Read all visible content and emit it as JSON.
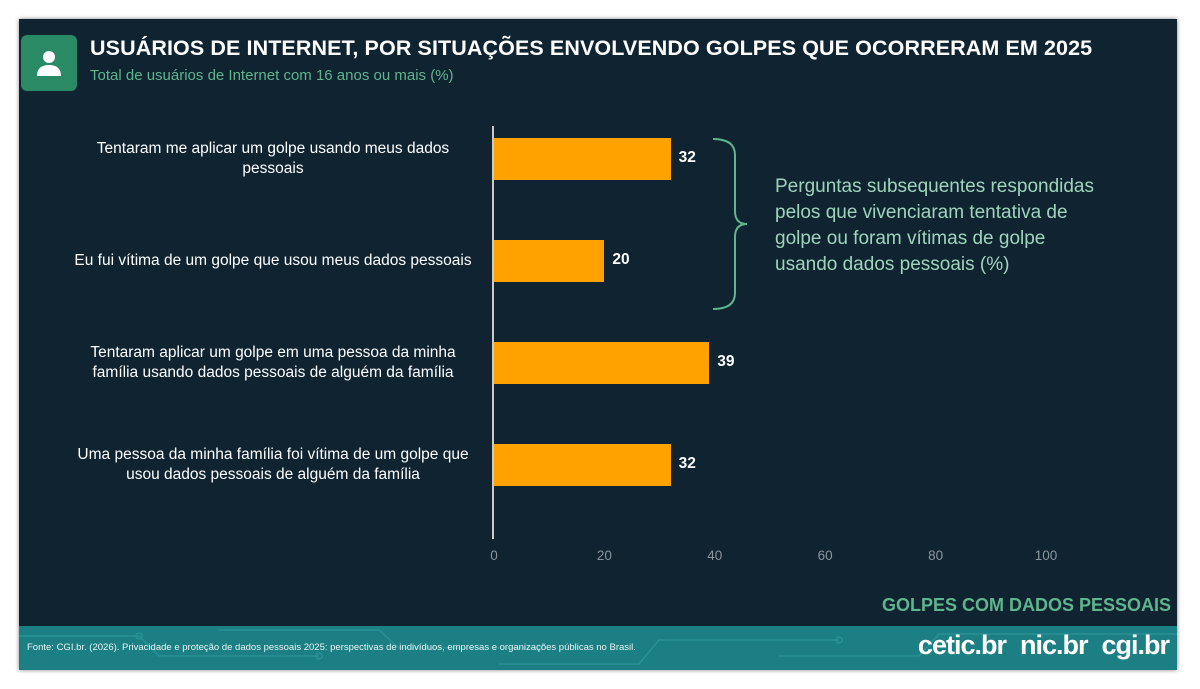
{
  "header": {
    "title": "USUÁRIOS DE INTERNET, POR SITUAÇÕES ENVOLVENDO GOLPES QUE OCORRERAM EM 2025",
    "subtitle": "Total de usuários de Internet com 16 anos ou mais (%)",
    "icon": "user-icon"
  },
  "chart_data": {
    "type": "bar",
    "orientation": "horizontal",
    "categories": [
      "Tentaram me aplicar um golpe usando meus dados pessoais",
      "Eu fui vítima de um golpe que usou meus dados pessoais",
      "Tentaram aplicar um golpe em uma pessoa da minha família usando dados pessoais de alguém da família",
      "Uma pessoa da minha família foi vítima de um golpe que usou dados pessoais de alguém da família"
    ],
    "values": [
      32,
      20,
      39,
      32
    ],
    "value_labels": [
      "32",
      "20",
      "39",
      "32"
    ],
    "xlim": [
      0,
      100
    ],
    "ticks": [
      "0",
      "20",
      "40",
      "60",
      "80",
      "100"
    ],
    "bar_color": "#ffa200",
    "grid": false
  },
  "annotation": {
    "text": "Perguntas subsequentes respondidas pelos que vivenciaram tentativa de golpe ou foram vítimas de golpe usando dados pessoais (%)"
  },
  "section_label": "GOLPES COM DADOS PESSOAIS",
  "footer": {
    "source": "Fonte: CGI.br. (2026). Privacidade e proteção de dados pessoais 2025: perspectivas de indivíduos, empresas e organizações públicas no Brasil.",
    "brands": [
      "cetic.br",
      "nic.br",
      "cgi.br"
    ]
  },
  "colors": {
    "background": "#0f2331",
    "accent": "#5fb58d",
    "footer": "#1c7f84"
  }
}
